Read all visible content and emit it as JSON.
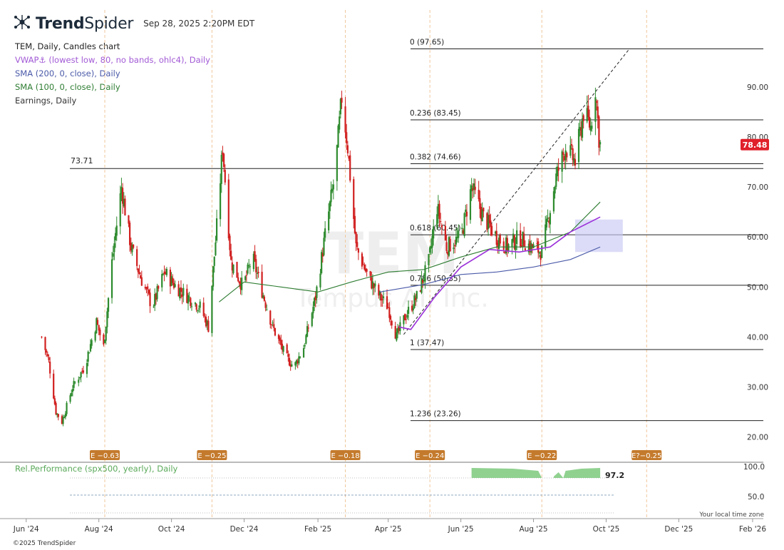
{
  "header": {
    "brand_bold": "Trend",
    "brand_light": "Spider",
    "timestamp": "Sep 28, 2025 2:20PM EDT"
  },
  "legend": {
    "main": "TEM, Daily, Candles chart",
    "vwap": "VWAP⚓ (lowest low, 80, no bands, ohlc4), Daily",
    "sma200": "SMA (200, 0, close), Daily",
    "sma100": "SMA (100, 0, close), Daily",
    "earnings": "Earnings, Daily"
  },
  "watermark": {
    "symbol": "TEM",
    "name": "Tempus AI, Inc."
  },
  "footer": "©2025 TrendSpider",
  "timezone_note": "Your local time zone",
  "colors": {
    "up": "#2e8b2e",
    "down": "#d11f1f",
    "vwap": "#9b30d9",
    "sma200": "#4a5aa8",
    "sma100": "#2e7d32",
    "price_badge": "#e0202a",
    "earnings_badge": "#c47a2c",
    "relperf": "#7cc97c"
  },
  "chart_data": {
    "type": "candlestick",
    "symbol": "TEM",
    "interval": "Daily",
    "ylim": [
      15,
      100
    ],
    "y_ticks": [
      "90.00",
      "80.00",
      "70.00",
      "60.00",
      "50.00",
      "40.00",
      "30.00",
      "20.00"
    ],
    "x_ticks": [
      "Jun '24",
      "Aug '24",
      "Oct '24",
      "Dec '24",
      "Feb '25",
      "Apr '25",
      "Jun '25",
      "Aug '25",
      "Oct '25",
      "Dec '25",
      "Feb '26"
    ],
    "x_range": [
      "2024-05-10",
      "2026-02-10"
    ],
    "last_price": "78.48",
    "horizontal_level": {
      "value": 73.71,
      "label": "73.71"
    },
    "fibonacci": [
      {
        "label": "0 (97.65)",
        "value": 97.65
      },
      {
        "label": "0.236 (83.45)",
        "value": 83.45
      },
      {
        "label": "0.382 (74.66)",
        "value": 74.66
      },
      {
        "label": "0.618 (60.45)",
        "value": 60.45
      },
      {
        "label": "0.786 (50.35)",
        "value": 50.35
      },
      {
        "label": "1 (37.47)",
        "value": 37.47
      },
      {
        "label": "1.236 (23.26)",
        "value": 23.26
      }
    ],
    "earnings": [
      {
        "date": "2024-08-06",
        "label": "E −0.63"
      },
      {
        "date": "2024-11-04",
        "label": "E −0.25"
      },
      {
        "date": "2025-02-24",
        "label": "E −0.18"
      },
      {
        "date": "2025-05-06",
        "label": "E −0.24"
      },
      {
        "date": "2025-08-08",
        "label": "E −0.22"
      },
      {
        "date": "2025-11-04",
        "label": "E?−0.25"
      }
    ],
    "ohlc_anchors": [
      [
        "2024-06-14",
        40
      ],
      [
        "2024-06-20",
        35
      ],
      [
        "2024-06-26",
        25
      ],
      [
        "2024-07-01",
        23
      ],
      [
        "2024-07-10",
        30
      ],
      [
        "2024-07-20",
        34
      ],
      [
        "2024-07-30",
        43
      ],
      [
        "2024-08-05",
        38
      ],
      [
        "2024-08-12",
        55
      ],
      [
        "2024-08-20",
        70
      ],
      [
        "2024-08-28",
        58
      ],
      [
        "2024-09-05",
        52
      ],
      [
        "2024-09-15",
        46
      ],
      [
        "2024-09-25",
        53
      ],
      [
        "2024-10-05",
        50
      ],
      [
        "2024-10-15",
        48
      ],
      [
        "2024-10-25",
        46
      ],
      [
        "2024-11-01",
        42
      ],
      [
        "2024-11-08",
        62
      ],
      [
        "2024-11-13",
        78
      ],
      [
        "2024-11-20",
        55
      ],
      [
        "2024-11-30",
        50
      ],
      [
        "2024-12-08",
        56
      ],
      [
        "2024-12-15",
        50
      ],
      [
        "2024-12-25",
        42
      ],
      [
        "2025-01-05",
        36
      ],
      [
        "2025-01-12",
        34
      ],
      [
        "2025-01-20",
        38
      ],
      [
        "2025-01-30",
        48
      ],
      [
        "2025-02-08",
        62
      ],
      [
        "2025-02-15",
        72
      ],
      [
        "2025-02-21",
        88
      ],
      [
        "2025-02-26",
        78
      ],
      [
        "2025-03-05",
        58
      ],
      [
        "2025-03-15",
        52
      ],
      [
        "2025-03-25",
        48
      ],
      [
        "2025-04-01",
        46
      ],
      [
        "2025-04-08",
        40
      ],
      [
        "2025-04-15",
        44
      ],
      [
        "2025-04-25",
        48
      ],
      [
        "2025-05-05",
        55
      ],
      [
        "2025-05-12",
        66
      ],
      [
        "2025-05-20",
        58
      ],
      [
        "2025-06-01",
        60
      ],
      [
        "2025-06-10",
        70
      ],
      [
        "2025-06-20",
        64
      ],
      [
        "2025-07-01",
        60
      ],
      [
        "2025-07-10",
        58
      ],
      [
        "2025-07-20",
        60
      ],
      [
        "2025-07-30",
        58
      ],
      [
        "2025-08-08",
        57
      ],
      [
        "2025-08-12",
        62
      ],
      [
        "2025-08-20",
        72
      ],
      [
        "2025-08-28",
        78
      ],
      [
        "2025-09-05",
        75
      ],
      [
        "2025-09-12",
        85
      ],
      [
        "2025-09-18",
        82
      ],
      [
        "2025-09-22",
        90
      ],
      [
        "2025-09-25",
        80
      ],
      [
        "2025-09-26",
        78.48
      ]
    ],
    "sma100_points": [
      [
        "2024-11-10",
        47
      ],
      [
        "2024-12-01",
        51
      ],
      [
        "2025-01-01",
        50
      ],
      [
        "2025-02-01",
        49
      ],
      [
        "2025-03-01",
        51
      ],
      [
        "2025-04-01",
        53
      ],
      [
        "2025-05-01",
        53.5
      ],
      [
        "2025-06-01",
        56
      ],
      [
        "2025-07-01",
        58
      ],
      [
        "2025-08-01",
        58
      ],
      [
        "2025-09-01",
        61
      ],
      [
        "2025-09-26",
        67
      ]
    ],
    "sma200_points": [
      [
        "2025-03-25",
        49
      ],
      [
        "2025-05-01",
        50.5
      ],
      [
        "2025-06-01",
        52.5
      ],
      [
        "2025-07-01",
        53
      ],
      [
        "2025-08-01",
        54
      ],
      [
        "2025-09-01",
        55.5
      ],
      [
        "2025-09-26",
        58
      ]
    ],
    "vwap_points": [
      [
        "2025-04-10",
        42
      ],
      [
        "2025-04-20",
        41.5
      ],
      [
        "2025-05-10",
        48
      ],
      [
        "2025-06-01",
        54
      ],
      [
        "2025-06-25",
        57.5
      ],
      [
        "2025-07-20",
        57
      ],
      [
        "2025-08-15",
        58
      ],
      [
        "2025-09-01",
        61
      ],
      [
        "2025-09-26",
        64
      ]
    ],
    "projection_box": {
      "x1": "2025-09-05",
      "x2": "2025-10-15",
      "y1": 57,
      "y2": 63.5
    },
    "trendline": {
      "x1": "2025-04-14",
      "y1": 40.5,
      "x2": "2025-10-20",
      "y2": 97.5
    },
    "rel_performance": {
      "label": "Rel.Performance (spx500, yearly), Daily",
      "value": "97.2",
      "y_ticks": [
        "100.0",
        "50.0"
      ]
    }
  }
}
